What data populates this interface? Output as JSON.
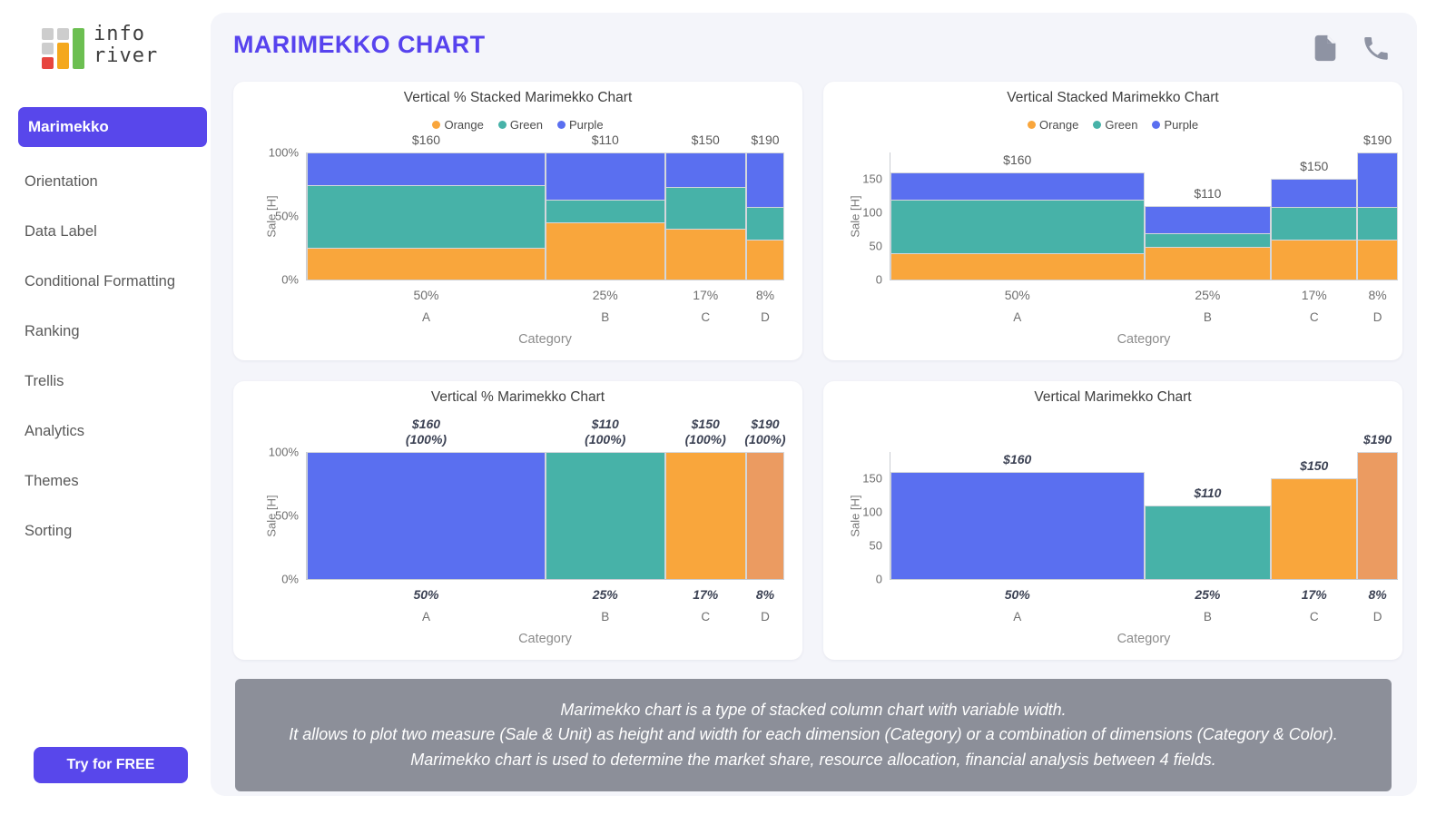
{
  "colors": {
    "accent": "#5847EB",
    "page_title": "#5743EE",
    "main_bg": "#F4F5FA",
    "card_bg": "#FFFFFF",
    "description_bg": "#8C8F99",
    "icon_gray": "#8E93A3",
    "palette": {
      "orange": "#F9A63C",
      "green": "#47B2A8",
      "purple": "#5A6FF0",
      "light_orange": "#EB9B61"
    },
    "logo": {
      "gray": "#CDCDCD",
      "red": "#E7453F",
      "orange": "#F4A81D",
      "green": "#6CBF51"
    }
  },
  "sidebar": {
    "logo": {
      "line1": "info",
      "line2": "river"
    },
    "items": [
      {
        "label": "Marimekko",
        "active": true
      },
      {
        "label": "Orientation",
        "active": false
      },
      {
        "label": "Data Label",
        "active": false
      },
      {
        "label": "Conditional Formatting",
        "active": false
      },
      {
        "label": "Ranking",
        "active": false
      },
      {
        "label": "Trellis",
        "active": false
      },
      {
        "label": "Analytics",
        "active": false
      },
      {
        "label": "Themes",
        "active": false
      },
      {
        "label": "Sorting",
        "active": false
      }
    ],
    "cta_label": "Try for FREE"
  },
  "header": {
    "title": "MARIMEKKO CHART",
    "icons": [
      "document-icon",
      "phone-icon"
    ]
  },
  "description": {
    "lines": [
      "Marimekko chart is a type of stacked column chart with variable width.",
      "It allows to plot two measure (Sale & Unit) as height and width for each dimension (Category) or a combination of dimensions (Category & Color).",
      "Marimekko chart is used to determine the market share, resource allocation, financial analysis between 4 fields."
    ]
  },
  "chart_data": [
    {
      "type": "bar",
      "variant": "vertical-percent-stacked-marimekko",
      "title": "Vertical % Stacked Marimekko Chart",
      "legend": [
        "Orange",
        "Green",
        "Purple"
      ],
      "categories": [
        "A",
        "B",
        "C",
        "D"
      ],
      "column_width_pct": [
        50,
        25,
        17,
        8
      ],
      "column_width_labels": [
        "50%",
        "25%",
        "17%",
        "8%"
      ],
      "series": [
        {
          "name": "Orange",
          "color": "orange",
          "values": [
            40,
            50,
            60,
            60
          ]
        },
        {
          "name": "Green",
          "color": "green",
          "values": [
            80,
            20,
            50,
            50
          ]
        },
        {
          "name": "Purple",
          "color": "purple",
          "values": [
            40,
            40,
            40,
            80
          ]
        }
      ],
      "column_totals": [
        160,
        110,
        150,
        190
      ],
      "column_labels": [
        "$160",
        "$110",
        "$150",
        "$190"
      ],
      "normalize": true,
      "ymax": 100,
      "yticks": [
        {
          "v": 0,
          "label": "0%"
        },
        {
          "v": 50,
          "label": "50%"
        },
        {
          "v": 100,
          "label": "100%"
        }
      ],
      "xlabel": "Category",
      "ylabel": "Sale [H]",
      "label_emphasis": false,
      "grid": false,
      "legend_position": "top"
    },
    {
      "type": "bar",
      "variant": "vertical-stacked-marimekko",
      "title": "Vertical Stacked Marimekko Chart",
      "legend": [
        "Orange",
        "Green",
        "Purple"
      ],
      "categories": [
        "A",
        "B",
        "C",
        "D"
      ],
      "column_width_pct": [
        50,
        25,
        17,
        8
      ],
      "column_width_labels": [
        "50%",
        "25%",
        "17%",
        "8%"
      ],
      "series": [
        {
          "name": "Orange",
          "color": "orange",
          "values": [
            40,
            50,
            60,
            60
          ]
        },
        {
          "name": "Green",
          "color": "green",
          "values": [
            80,
            20,
            50,
            50
          ]
        },
        {
          "name": "Purple",
          "color": "purple",
          "values": [
            40,
            40,
            40,
            80
          ]
        }
      ],
      "column_totals": [
        160,
        110,
        150,
        190
      ],
      "column_labels": [
        "$160",
        "$110",
        "$150",
        "$190"
      ],
      "normalize": false,
      "ymax": 190,
      "yticks": [
        {
          "v": 0,
          "label": "0"
        },
        {
          "v": 50,
          "label": "50"
        },
        {
          "v": 100,
          "label": "100"
        },
        {
          "v": 150,
          "label": "150"
        }
      ],
      "xlabel": "Category",
      "ylabel": "Sale [H]",
      "label_emphasis": false,
      "grid": false,
      "legend_position": "top"
    },
    {
      "type": "bar",
      "variant": "vertical-percent-marimekko",
      "title": "Vertical % Marimekko Chart",
      "legend": [],
      "categories": [
        "A",
        "B",
        "C",
        "D"
      ],
      "column_width_pct": [
        50,
        25,
        17,
        8
      ],
      "column_width_labels": [
        "50%",
        "25%",
        "17%",
        "8%"
      ],
      "column_colors": [
        "purple",
        "green",
        "orange",
        "light_orange"
      ],
      "column_totals": [
        160,
        110,
        150,
        190
      ],
      "column_labels": [
        "$160",
        "$110",
        "$150",
        "$190"
      ],
      "column_sublabels": [
        "(100%)",
        "(100%)",
        "(100%)",
        "(100%)"
      ],
      "normalize": true,
      "ymax": 100,
      "yticks": [
        {
          "v": 0,
          "label": "0%"
        },
        {
          "v": 50,
          "label": "50%"
        },
        {
          "v": 100,
          "label": "100%"
        }
      ],
      "xlabel": "Category",
      "ylabel": "Sale [H]",
      "label_emphasis": true,
      "grid": false
    },
    {
      "type": "bar",
      "variant": "vertical-marimekko",
      "title": "Vertical Marimekko Chart",
      "legend": [],
      "categories": [
        "A",
        "B",
        "C",
        "D"
      ],
      "column_width_pct": [
        50,
        25,
        17,
        8
      ],
      "column_width_labels": [
        "50%",
        "25%",
        "17%",
        "8%"
      ],
      "column_colors": [
        "purple",
        "green",
        "orange",
        "light_orange"
      ],
      "column_totals": [
        160,
        110,
        150,
        190
      ],
      "column_labels": [
        "$160",
        "$110",
        "$150",
        "$190"
      ],
      "normalize": false,
      "ymax": 190,
      "yticks": [
        {
          "v": 0,
          "label": "0"
        },
        {
          "v": 50,
          "label": "50"
        },
        {
          "v": 100,
          "label": "100"
        },
        {
          "v": 150,
          "label": "150"
        }
      ],
      "xlabel": "Category",
      "ylabel": "Sale [H]",
      "label_emphasis": true,
      "grid": false
    }
  ]
}
